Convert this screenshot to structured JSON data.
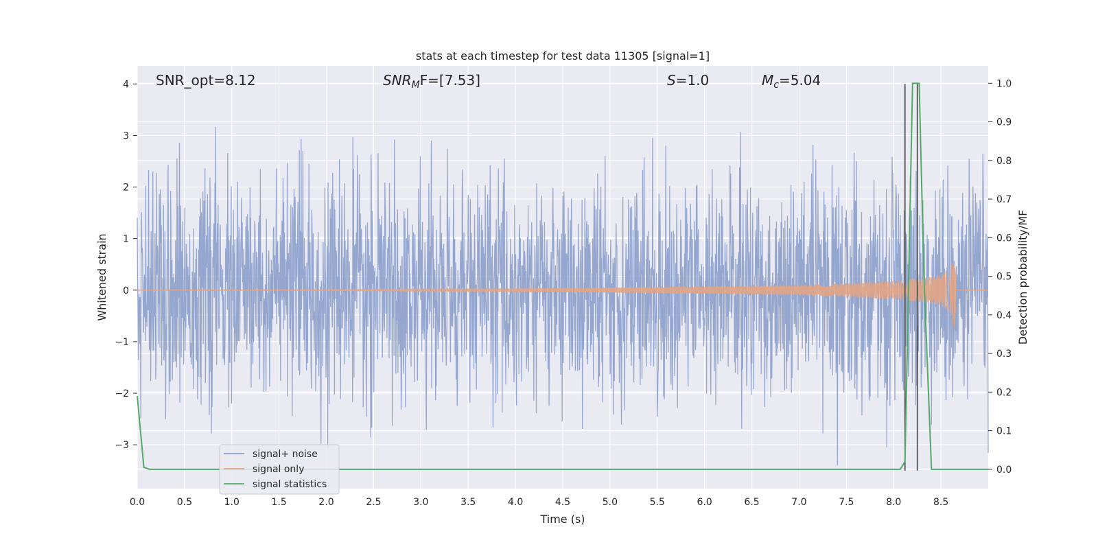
{
  "chart_data": {
    "type": "line",
    "title": "stats at each timestep for test data 11305 [signal=1]",
    "xlabel": "Time (s)",
    "ylabel_left": "Whitened strain",
    "ylabel_right": "Detection probability/MF",
    "xlim": [
      0.0,
      9.0
    ],
    "ylim_left": [
      -3.85,
      4.35
    ],
    "ylim_right": [
      -0.05,
      1.045
    ],
    "x_ticks": [
      "0.0",
      "0.5",
      "1.0",
      "1.5",
      "2.0",
      "2.5",
      "3.0",
      "3.5",
      "4.0",
      "4.5",
      "5.0",
      "5.5",
      "6.0",
      "6.5",
      "7.0",
      "7.5",
      "8.0",
      "8.5"
    ],
    "y_ticks_left": [
      "4",
      "3",
      "2",
      "1",
      "0",
      "−1",
      "−2",
      "−3"
    ],
    "y_ticks_right": [
      "1.0",
      "0.9",
      "0.8",
      "0.7",
      "0.6",
      "0.5",
      "0.4",
      "0.3",
      "0.2",
      "0.1",
      "0.0"
    ],
    "grid": true,
    "legend_position": "lower-left",
    "annotations": {
      "snr_opt": "SNR_opt=8.12",
      "snr_mf": "SNR",
      "snr_mf_sub": "M",
      "snr_mf_rest": "F=[7.53]",
      "s_label": "S",
      "s_value": "=1.0",
      "mc_label": "M",
      "mc_sub": "c",
      "mc_value": "=5.04"
    },
    "series": [
      {
        "name": "signal+ noise",
        "color": "#8da0cb",
        "axis": "left",
        "description_values": "whitened noise, roughly unit variance, spanning about -3.4 to 4.0"
      },
      {
        "name": "signal only",
        "color": "#e1a584",
        "axis": "left",
        "envelope": {
          "x": [
            0.0,
            2.0,
            4.0,
            6.0,
            7.0,
            7.5,
            8.0,
            8.3,
            8.5,
            8.6,
            8.65,
            8.66
          ],
          "amplitude": [
            0.005,
            0.01,
            0.03,
            0.07,
            0.1,
            0.13,
            0.18,
            0.23,
            0.3,
            0.45,
            0.8,
            0.0
          ]
        }
      },
      {
        "name": "signal statistics",
        "color": "#55a868",
        "axis": "right",
        "x": [
          0.0,
          0.07,
          0.13,
          8.07,
          8.12,
          8.2,
          8.27,
          8.32,
          8.4,
          9.0
        ],
        "y": [
          0.19,
          0.005,
          0.0,
          0.0,
          0.02,
          1.0,
          1.0,
          0.5,
          0.0,
          0.0
        ]
      }
    ],
    "vlines": [
      {
        "x": 8.12,
        "y_range_left": [
          -3.5,
          4.0
        ],
        "color": "#444444"
      },
      {
        "x": 8.25,
        "y_range_left": [
          -3.5,
          4.0
        ],
        "color": "#444444"
      }
    ]
  }
}
